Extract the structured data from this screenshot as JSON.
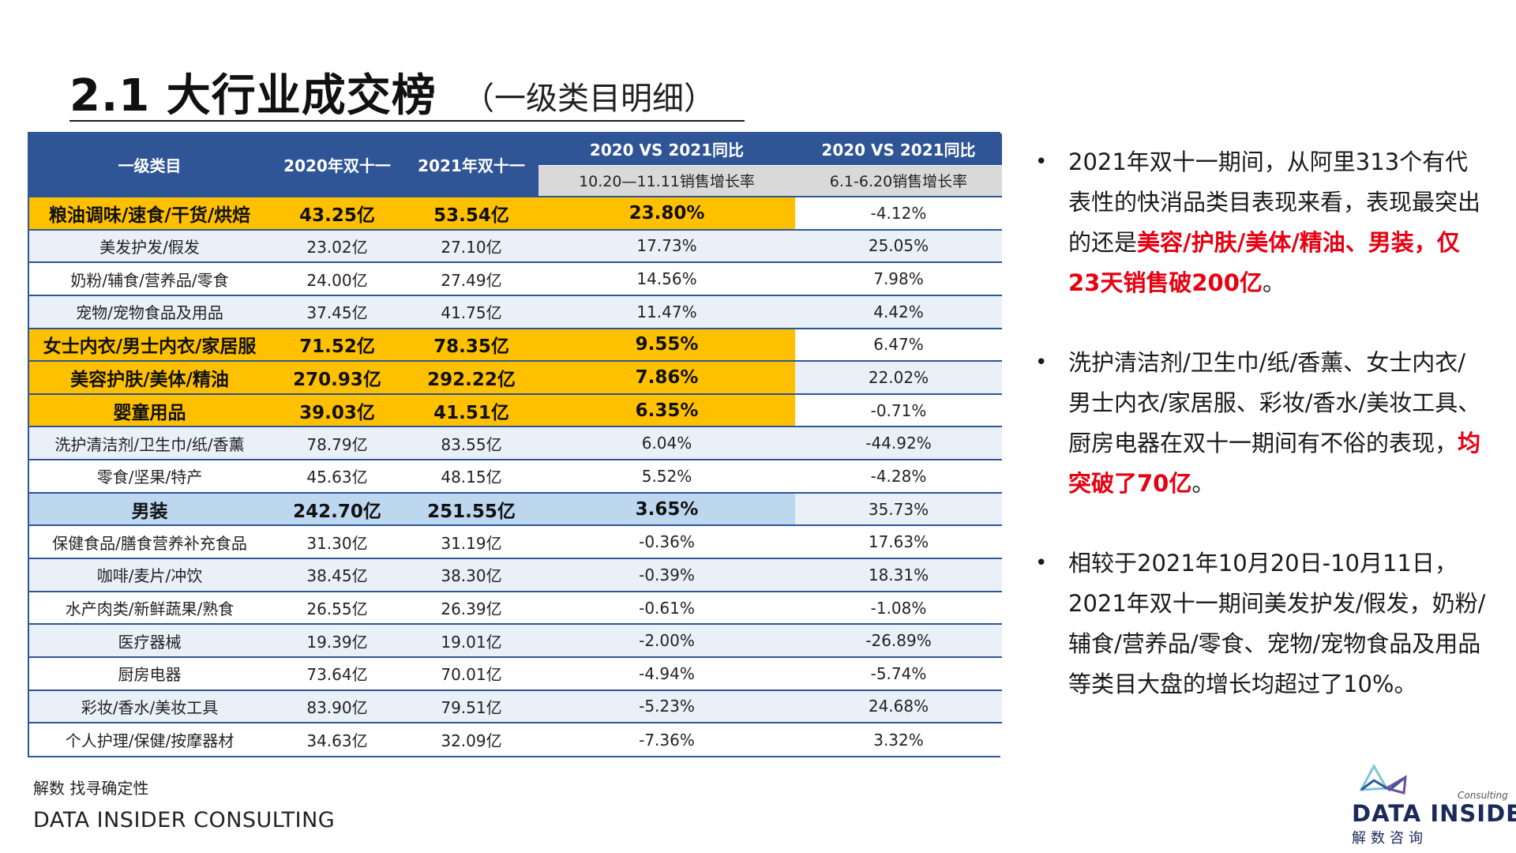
{
  "title": {
    "main": "2.1 大行业成交榜",
    "sub": "（一级类目明细）"
  },
  "table": {
    "headers": {
      "category": "一级类目",
      "y2020": "2020年双十一",
      "y2021": "2021年双十一",
      "cmp1": "2020 VS 2021同比",
      "cmp2": "2020 VS 2021同比",
      "cmp1_sub": "10.20—11.11销售增长率",
      "cmp2_sub": "6.1-6.20销售增长率"
    },
    "rows": [
      {
        "name": "粮油调味/速食/干货/烘焙",
        "y2020": "43.25亿",
        "y2021": "53.54亿",
        "g1": "23.80%",
        "g2": "-4.12%"
      },
      {
        "name": "美发护发/假发",
        "y2020": "23.02亿",
        "y2021": "27.10亿",
        "g1": "17.73%",
        "g2": "25.05%"
      },
      {
        "name": "奶粉/辅食/营养品/零食",
        "y2020": "24.00亿",
        "y2021": "27.49亿",
        "g1": "14.56%",
        "g2": "7.98%"
      },
      {
        "name": "宠物/宠物食品及用品",
        "y2020": "37.45亿",
        "y2021": "41.75亿",
        "g1": "11.47%",
        "g2": "4.42%"
      },
      {
        "name": "女士内衣/男士内衣/家居服",
        "y2020": "71.52亿",
        "y2021": "78.35亿",
        "g1": "9.55%",
        "g2": "6.47%"
      },
      {
        "name": "美容护肤/美体/精油",
        "y2020": "270.93亿",
        "y2021": "292.22亿",
        "g1": "7.86%",
        "g2": "22.02%"
      },
      {
        "name": "婴童用品",
        "y2020": "39.03亿",
        "y2021": "41.51亿",
        "g1": "6.35%",
        "g2": "-0.71%"
      },
      {
        "name": "洗护清洁剂/卫生巾/纸/香薰",
        "y2020": "78.79亿",
        "y2021": "83.55亿",
        "g1": "6.04%",
        "g2": "-44.92%"
      },
      {
        "name": "零食/坚果/特产",
        "y2020": "45.63亿",
        "y2021": "48.15亿",
        "g1": "5.52%",
        "g2": "-4.28%"
      },
      {
        "name": "男装",
        "y2020": "242.70亿",
        "y2021": "251.55亿",
        "g1": "3.65%",
        "g2": "35.73%"
      },
      {
        "name": "保健食品/膳食营养补充食品",
        "y2020": "31.30亿",
        "y2021": "31.19亿",
        "g1": "-0.36%",
        "g2": "17.63%"
      },
      {
        "name": "咖啡/麦片/冲饮",
        "y2020": "38.45亿",
        "y2021": "38.30亿",
        "g1": "-0.39%",
        "g2": "18.31%"
      },
      {
        "name": "水产肉类/新鲜蔬果/熟食",
        "y2020": "26.55亿",
        "y2021": "26.39亿",
        "g1": "-0.61%",
        "g2": "-1.08%"
      },
      {
        "name": "医疗器械",
        "y2020": "19.39亿",
        "y2021": "19.01亿",
        "g1": "-2.00%",
        "g2": "-26.89%"
      },
      {
        "name": "厨房电器",
        "y2020": "73.64亿",
        "y2021": "70.01亿",
        "g1": "-4.94%",
        "g2": "-5.74%"
      },
      {
        "name": "彩妆/香水/美妆工具",
        "y2020": "83.90亿",
        "y2021": "79.51亿",
        "g1": "-5.23%",
        "g2": "24.68%"
      },
      {
        "name": "个人护理/保健/按摩器材",
        "y2020": "34.63亿",
        "y2021": "32.09亿",
        "g1": "-7.36%",
        "g2": "3.32%"
      }
    ]
  },
  "bullets": [
    {
      "text_before": "2021年双十一期间，从阿里313个有代表性的快消品类目表现来看，表现最突出的还是",
      "highlight": "美容/护肤/美体/精油、男装，仅23天销售破200亿",
      "text_after": "。"
    },
    {
      "text_before": "洗护清洁剂/卫生巾/纸/香薰、女士内衣/男士内衣/家居服、彩妆/香水/美妆工具、厨房电器在双十一期间有不俗的表现，",
      "highlight": "均突破了70亿",
      "text_after": "。"
    },
    {
      "text_before": "相较于2021年10月20日-10月11日，2021年双十一期间美发护发/假发，奶粉/辅食/营养品/零食、宠物/宠物食品及用品等类目大盘的增长均超过了10%。",
      "highlight": "",
      "text_after": ""
    }
  ],
  "bullet_symbol": "•",
  "footer": {
    "cn": "解数 找寻确定性",
    "en": "DATA INSIDER CONSULTING"
  },
  "logo": {
    "name": "DATA INSIDER",
    "cn": "解数咨询",
    "tag": "Consulting"
  },
  "colors": {
    "header_blue": "#2f5597",
    "highlight_yellow": "#ffc000",
    "highlight_blue": "#bdd7ee",
    "stripe": "#eaf0f8",
    "accent_red": "#e60012"
  }
}
